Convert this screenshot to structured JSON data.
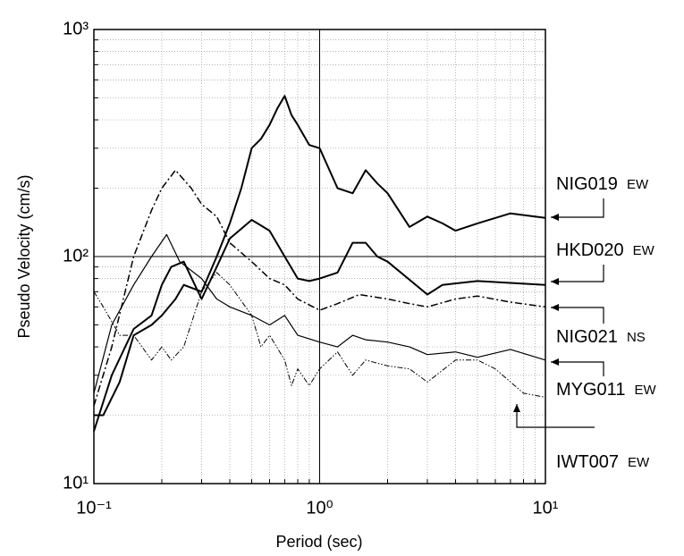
{
  "chart_data": {
    "type": "line",
    "x_label": "Period (sec)",
    "y_label": "Pseudo Velocity (cm/s)",
    "x_scale": "log",
    "y_scale": "log",
    "grid": true,
    "minor_grid": true,
    "xlim": [
      0.1,
      10
    ],
    "ylim": [
      10,
      1000
    ],
    "xticks": [
      {
        "value": 0.1,
        "label": "10⁻¹"
      },
      {
        "value": 1,
        "label": "10⁰"
      },
      {
        "value": 10,
        "label": "10¹"
      }
    ],
    "yticks": [
      {
        "value": 10,
        "label": "10¹"
      },
      {
        "value": 100,
        "label": "10²"
      },
      {
        "value": 1000,
        "label": "10³"
      }
    ],
    "series": [
      {
        "name": "NIG019",
        "component": "EW",
        "color": "#000000",
        "width": 2,
        "dash": "none",
        "x": [
          0.1,
          0.11,
          0.13,
          0.15,
          0.18,
          0.2,
          0.23,
          0.25,
          0.3,
          0.35,
          0.4,
          0.45,
          0.5,
          0.55,
          0.6,
          0.65,
          0.7,
          0.75,
          0.8,
          0.9,
          1.0,
          1.2,
          1.4,
          1.6,
          1.8,
          2.0,
          2.5,
          3.0,
          3.5,
          4.0,
          5.0,
          7.0,
          10
        ],
        "values": [
          20,
          20,
          28,
          45,
          50,
          55,
          65,
          75,
          70,
          100,
          140,
          200,
          300,
          330,
          380,
          450,
          510,
          420,
          380,
          310,
          300,
          200,
          190,
          240,
          210,
          190,
          135,
          150,
          140,
          130,
          140,
          155,
          148
        ]
      },
      {
        "name": "HKD020",
        "component": "EW",
        "color": "#000000",
        "width": 2,
        "dash": "none",
        "x": [
          0.1,
          0.12,
          0.15,
          0.18,
          0.2,
          0.22,
          0.25,
          0.28,
          0.3,
          0.35,
          0.4,
          0.5,
          0.6,
          0.7,
          0.8,
          0.9,
          1.0,
          1.2,
          1.4,
          1.6,
          1.8,
          2.0,
          3.0,
          3.5,
          5.0,
          10
        ],
        "values": [
          17,
          30,
          48,
          55,
          75,
          90,
          95,
          75,
          65,
          90,
          120,
          145,
          130,
          100,
          80,
          78,
          80,
          85,
          115,
          115,
          100,
          95,
          68,
          75,
          78,
          75
        ]
      },
      {
        "name": "NIG021",
        "component": "NS",
        "color": "#000000",
        "width": 1.5,
        "dash": "8,3,2,3",
        "x": [
          0.1,
          0.12,
          0.15,
          0.18,
          0.2,
          0.23,
          0.27,
          0.3,
          0.35,
          0.4,
          0.5,
          0.6,
          0.7,
          0.8,
          1.0,
          1.2,
          1.5,
          2.0,
          2.5,
          3.0,
          4.0,
          5.0,
          7.0,
          10
        ],
        "values": [
          22,
          40,
          100,
          160,
          200,
          240,
          200,
          170,
          150,
          115,
          95,
          80,
          75,
          65,
          58,
          62,
          68,
          65,
          62,
          60,
          65,
          67,
          63,
          60
        ]
      },
      {
        "name": "MYG011",
        "component": "EW",
        "color": "#000000",
        "width": 1.2,
        "dash": "none",
        "x": [
          0.1,
          0.12,
          0.15,
          0.18,
          0.21,
          0.24,
          0.3,
          0.35,
          0.4,
          0.5,
          0.6,
          0.7,
          0.8,
          1.0,
          1.2,
          1.4,
          1.6,
          2.0,
          2.5,
          3.0,
          4.0,
          5.0,
          7.0,
          10
        ],
        "values": [
          25,
          50,
          75,
          100,
          125,
          95,
          80,
          65,
          60,
          55,
          50,
          55,
          45,
          42,
          40,
          45,
          43,
          42,
          40,
          37,
          38,
          36,
          39,
          35
        ]
      },
      {
        "name": "IWT007",
        "component": "EW",
        "color": "#000000",
        "width": 1,
        "dash": "6,2,1.5,2,1.5,2",
        "x": [
          0.1,
          0.11,
          0.13,
          0.15,
          0.18,
          0.2,
          0.22,
          0.25,
          0.3,
          0.35,
          0.4,
          0.5,
          0.55,
          0.6,
          0.7,
          0.75,
          0.8,
          0.9,
          1.0,
          1.2,
          1.4,
          1.6,
          2.0,
          2.5,
          3.0,
          4.0,
          5.0,
          6.0,
          8.0,
          10
        ],
        "values": [
          70,
          60,
          45,
          45,
          35,
          40,
          35,
          40,
          70,
          85,
          75,
          55,
          40,
          45,
          35,
          27,
          32,
          27,
          32,
          38,
          30,
          35,
          33,
          32,
          28,
          35,
          35,
          32,
          25,
          24
        ]
      }
    ]
  }
}
